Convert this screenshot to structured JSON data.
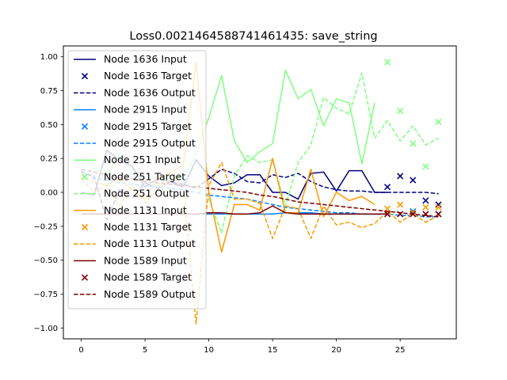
{
  "chart_data": {
    "type": "line",
    "title": "Loss0.0021464588741461435: save_string",
    "xlabel": "",
    "ylabel": "",
    "xlim": [
      -1.4,
      29.4
    ],
    "ylim": [
      -1.08,
      1.08
    ],
    "xticks": [
      0,
      5,
      10,
      15,
      20,
      25
    ],
    "yticks": [
      -1.0,
      -0.75,
      -0.5,
      -0.25,
      0.0,
      0.25,
      0.5,
      0.75,
      1.0
    ],
    "xtick_labels": [
      "0",
      "5",
      "10",
      "15",
      "20",
      "25"
    ],
    "ytick_labels": [
      "−1.00",
      "−0.75",
      "−0.50",
      "−0.25",
      "0.00",
      "0.25",
      "0.50",
      "0.75",
      "1.00"
    ],
    "grid": false,
    "legend_position": "upper-left",
    "series": [
      {
        "name": "Node 1636 Input",
        "kind": "input",
        "color": "#00007f",
        "x": [
          0,
          1,
          2,
          3,
          4,
          5,
          6,
          7,
          8,
          9,
          10,
          11,
          12,
          13,
          14,
          15,
          16,
          17,
          18,
          19,
          20,
          21,
          22,
          23,
          24,
          25,
          26,
          27,
          28
        ],
        "y": [
          0.0,
          -0.02,
          0.31,
          0.24,
          0.19,
          0.04,
          0.1,
          0.08,
          0.04,
          0.24,
          0.12,
          0.05,
          0.07,
          0.13,
          0.13,
          0.0,
          0.0,
          -0.05,
          0.14,
          0.15,
          0.01,
          0.16,
          0.16,
          0.0,
          0.0,
          null,
          null,
          null,
          null
        ]
      },
      {
        "name": "Node 1636 Target",
        "kind": "target",
        "color": "#00007f",
        "x": [
          24,
          25,
          26,
          27,
          28
        ],
        "y": [
          0.04,
          0.12,
          0.09,
          -0.06,
          -0.09
        ]
      },
      {
        "name": "Node 1636 Output",
        "kind": "output",
        "color": "#00007f",
        "x": [
          0,
          1,
          2,
          3,
          4,
          5,
          6,
          7,
          8,
          9,
          10,
          11,
          12,
          13,
          14,
          15,
          16,
          17,
          18,
          19,
          20,
          21,
          22,
          23,
          24,
          25,
          26,
          27,
          28
        ],
        "y": [
          0.15,
          0.12,
          -0.2,
          0.02,
          -0.04,
          0.07,
          0.03,
          0.08,
          0.06,
          0.03,
          0.1,
          0.17,
          0.14,
          0.08,
          0.07,
          0.13,
          0.11,
          0.14,
          0.08,
          0.04,
          0.02,
          0.01,
          0.01,
          0.0,
          0.0,
          0.0,
          0.0,
          0.0,
          -0.01
        ]
      },
      {
        "name": "Node 2915 Input",
        "kind": "input",
        "color": "#0080ff",
        "x": [
          0,
          1,
          2,
          3,
          4,
          5,
          6,
          7,
          8,
          9,
          10,
          11,
          12,
          13,
          14,
          15,
          16,
          17,
          18,
          19,
          20,
          21,
          22,
          23,
          24,
          25,
          26,
          27,
          28
        ],
        "y": [
          -0.16,
          -0.16,
          -0.16,
          -0.16,
          -0.16,
          -0.16,
          -0.16,
          -0.16,
          -0.16,
          -0.16,
          -0.16,
          -0.16,
          -0.16,
          -0.16,
          -0.16,
          -0.16,
          -0.15,
          -0.15,
          -0.15,
          -0.16,
          -0.16,
          -0.16,
          -0.16,
          -0.16,
          -0.16,
          null,
          null,
          null,
          null
        ]
      },
      {
        "name": "Node 2915 Target",
        "kind": "target",
        "color": "#0080ff",
        "x": [
          24,
          25,
          26,
          27,
          28
        ],
        "y": [
          -0.16,
          -0.16,
          -0.14,
          -0.16,
          -0.16
        ]
      },
      {
        "name": "Node 2915 Output",
        "kind": "output",
        "color": "#0080ff",
        "x": [
          0,
          1,
          2,
          3,
          4,
          5,
          6,
          7,
          8,
          9,
          10,
          11,
          12,
          13,
          14,
          15,
          16,
          17,
          18,
          19,
          20,
          21,
          22,
          23,
          24,
          25,
          26,
          27,
          28
        ],
        "y": [
          0.16,
          0.1,
          0.09,
          0.07,
          0.06,
          0.05,
          0.04,
          0.03,
          0.02,
          0.0,
          -0.02,
          -0.03,
          -0.04,
          -0.05,
          -0.07,
          -0.09,
          -0.11,
          -0.12,
          -0.13,
          -0.14,
          -0.15,
          -0.15,
          -0.16,
          -0.16,
          -0.16,
          -0.17,
          -0.17,
          -0.18,
          -0.18
        ]
      },
      {
        "name": "Node 251 Input",
        "kind": "input",
        "color": "#7fff7f",
        "x": [
          0,
          1,
          2,
          3,
          4,
          5,
          6,
          7,
          8,
          9,
          10,
          11,
          12,
          13,
          14,
          15,
          16,
          17,
          18,
          19,
          20,
          21,
          22,
          23,
          24,
          25,
          26,
          27,
          28
        ],
        "y": [
          0.1,
          0.18,
          0.12,
          0.28,
          0.15,
          0.08,
          0.05,
          0.12,
          0.1,
          0.28,
          0.55,
          0.86,
          0.38,
          0.22,
          0.3,
          0.36,
          0.9,
          0.69,
          0.76,
          0.49,
          0.69,
          0.66,
          0.21,
          0.66,
          null,
          null,
          null,
          null,
          null
        ]
      },
      {
        "name": "Node 251 Target",
        "kind": "target",
        "color": "#7fff7f",
        "x": [
          24,
          25,
          26,
          27,
          28
        ],
        "y": [
          0.96,
          0.6,
          0.36,
          0.19,
          0.52
        ]
      },
      {
        "name": "Node 251 Output",
        "kind": "output",
        "color": "#7fff7f",
        "x": [
          0,
          1,
          2,
          3,
          4,
          5,
          6,
          7,
          8,
          9,
          10,
          11,
          12,
          13,
          14,
          15,
          16,
          17,
          18,
          19,
          20,
          21,
          22,
          23,
          24,
          25,
          26,
          27,
          28
        ],
        "y": [
          0.25,
          0.2,
          0.15,
          0.1,
          0.15,
          0.1,
          0.12,
          0.08,
          0.1,
          0.05,
          -0.05,
          -0.3,
          0.12,
          0.27,
          0.22,
          0.24,
          -0.1,
          0.22,
          0.35,
          0.7,
          0.62,
          0.58,
          0.88,
          0.4,
          0.53,
          0.38,
          0.49,
          0.35,
          0.4
        ]
      },
      {
        "name": "Node 1131 Input",
        "kind": "input",
        "color": "#ff9900",
        "x": [
          0,
          1,
          2,
          3,
          4,
          5,
          6,
          7,
          8,
          9,
          10,
          11,
          12,
          13,
          14,
          15,
          16,
          17,
          18,
          19,
          20,
          21,
          22,
          23,
          24,
          25,
          26,
          27,
          28
        ],
        "y": [
          0.12,
          0.08,
          0.05,
          0.1,
          0.02,
          -0.05,
          0.1,
          0.15,
          0.2,
          0.96,
          0.0,
          -0.44,
          -0.09,
          -0.09,
          -0.13,
          0.25,
          -0.15,
          -0.15,
          0.17,
          -0.18,
          0.0,
          -0.06,
          -0.03,
          -0.09,
          null,
          null,
          null,
          null,
          null
        ]
      },
      {
        "name": "Node 1131 Target",
        "kind": "target",
        "color": "#ff9900",
        "x": [
          24,
          25,
          26,
          27,
          28
        ],
        "y": [
          -0.12,
          -0.09,
          -0.15,
          -0.11,
          -0.11
        ]
      },
      {
        "name": "Node 1131 Output",
        "kind": "output",
        "color": "#ff9900",
        "x": [
          0,
          1,
          2,
          3,
          4,
          5,
          6,
          7,
          8,
          9,
          10,
          11,
          12,
          13,
          14,
          15,
          16,
          17,
          18,
          19,
          20,
          21,
          22,
          23,
          24,
          25,
          26,
          27,
          28
        ],
        "y": [
          0.1,
          0.0,
          0.05,
          -0.1,
          0.05,
          -0.08,
          0.02,
          0.1,
          0.05,
          -0.97,
          0.05,
          0.22,
          -0.05,
          -0.05,
          -0.08,
          -0.34,
          -0.1,
          -0.12,
          -0.34,
          -0.1,
          -0.24,
          -0.22,
          -0.26,
          -0.23,
          -0.14,
          -0.22,
          -0.16,
          -0.22,
          -0.17
        ]
      },
      {
        "name": "Node 1589 Input",
        "kind": "input",
        "color": "#7f0000",
        "x": [
          0,
          1,
          2,
          3,
          4,
          5,
          6,
          7,
          8,
          9,
          10,
          11,
          12,
          13,
          14,
          15,
          16,
          17,
          18,
          19,
          20,
          21,
          22,
          23,
          24,
          25,
          26,
          27,
          28
        ],
        "y": [
          -0.16,
          -0.16,
          -0.16,
          -0.16,
          -0.16,
          -0.16,
          -0.16,
          -0.16,
          -0.16,
          -0.16,
          -0.15,
          -0.15,
          -0.16,
          -0.16,
          -0.15,
          -0.1,
          -0.15,
          -0.16,
          -0.16,
          -0.16,
          -0.16,
          -0.16,
          -0.16,
          -0.16,
          -0.16,
          null,
          null,
          null,
          null
        ]
      },
      {
        "name": "Node 1589 Target",
        "kind": "target",
        "color": "#7f0000",
        "x": [
          24,
          25,
          26,
          27,
          28
        ],
        "y": [
          -0.16,
          -0.16,
          -0.16,
          -0.16,
          -0.16
        ]
      },
      {
        "name": "Node 1589 Output",
        "kind": "output",
        "color": "#7f0000",
        "x": [
          0,
          1,
          2,
          3,
          4,
          5,
          6,
          7,
          8,
          9,
          10,
          11,
          12,
          13,
          14,
          15,
          16,
          17,
          18,
          19,
          20,
          21,
          22,
          23,
          24,
          25,
          26,
          27,
          28
        ],
        "y": [
          0.17,
          0.15,
          0.13,
          0.11,
          0.1,
          0.08,
          0.07,
          0.06,
          0.05,
          0.04,
          0.03,
          0.02,
          0.01,
          0.0,
          -0.02,
          -0.03,
          -0.05,
          -0.07,
          -0.08,
          -0.09,
          -0.1,
          -0.11,
          -0.12,
          -0.13,
          -0.14,
          -0.15,
          -0.16,
          -0.17,
          -0.18
        ]
      }
    ]
  }
}
